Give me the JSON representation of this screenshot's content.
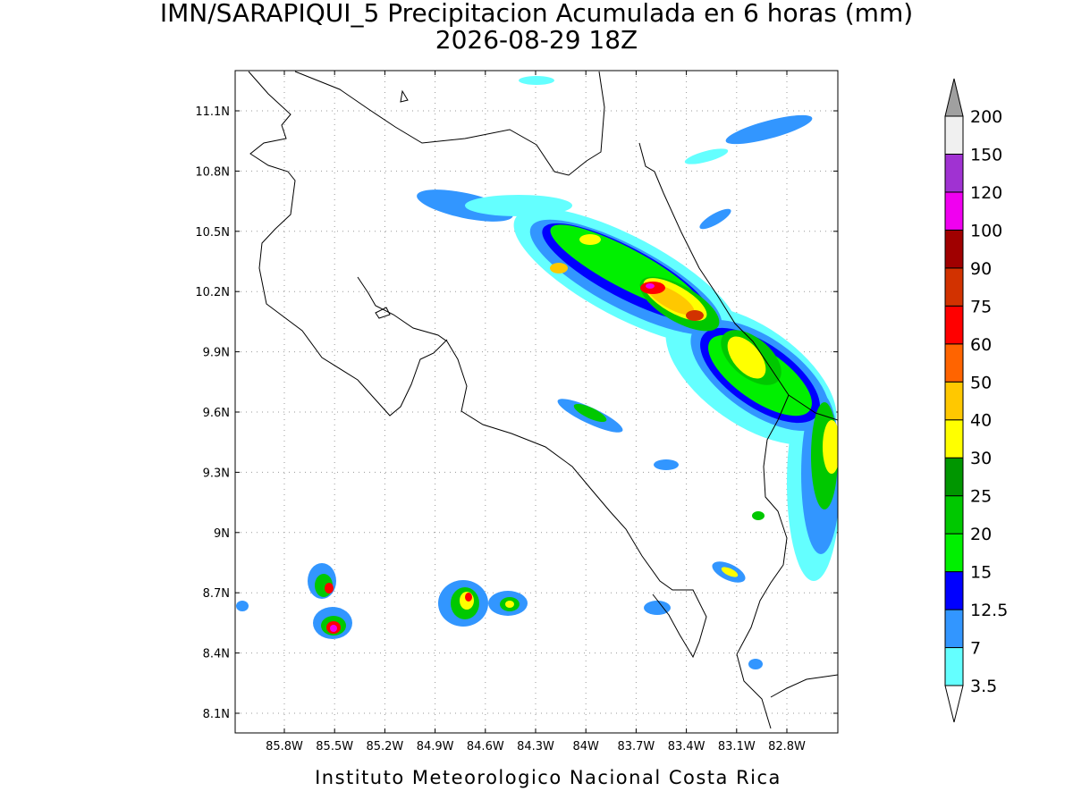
{
  "title": "IMN/SARAPIQUI_5 Precipitacion Acumulada en 6 horas (mm)",
  "subtitle": "2026-08-29 18Z",
  "map": {
    "lat_ticks": [
      "11.1N",
      "10.8N",
      "10.5N",
      "10.2N",
      "9.9N",
      "9.6N",
      "9.3N",
      "9N",
      "8.7N",
      "8.4N",
      "8.1N"
    ],
    "lon_ticks": [
      "85.8W",
      "85.5W",
      "85.2W",
      "84.9W",
      "84.6W",
      "84.3W",
      "84W",
      "83.7W",
      "83.4W",
      "83.1W",
      "82.8W"
    ]
  },
  "colorbar": {
    "levels": [
      "3.5",
      "7",
      "12.5",
      "15",
      "20",
      "25",
      "30",
      "40",
      "50",
      "60",
      "75",
      "90",
      "100",
      "120",
      "150",
      "200"
    ],
    "colors": [
      "#64ffff",
      "#3296ff",
      "#0000ff",
      "#00f000",
      "#00c800",
      "#009600",
      "#ffff00",
      "#ffc800",
      "#ff6400",
      "#ff0000",
      "#d23200",
      "#a00000",
      "#f000f0",
      "#a032d2",
      "#f0f0f0"
    ],
    "over_color": "#a0a0a0",
    "under_color": "#ffffff"
  },
  "footer": "Instituto Meteorologico Nacional Costa Rica"
}
